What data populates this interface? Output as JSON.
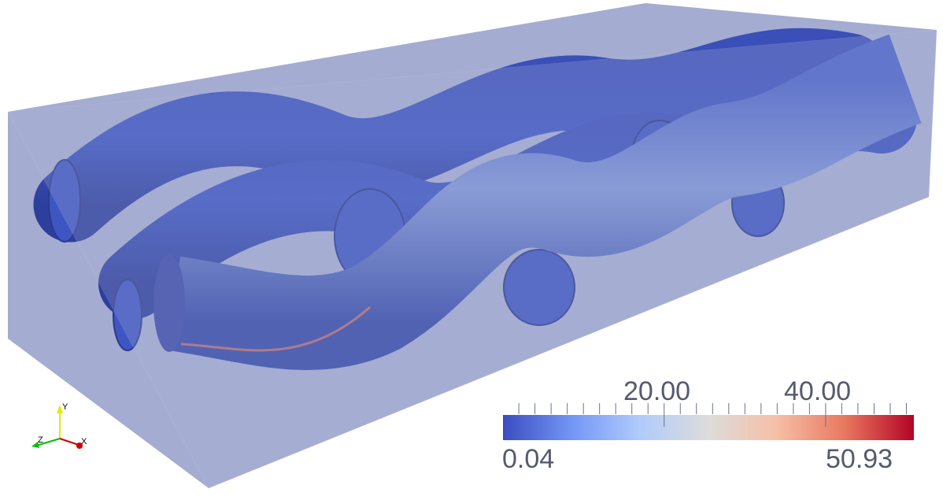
{
  "scalar_bar": {
    "range": [
      0.04,
      50.93
    ],
    "min_label": "0.04",
    "max_label": "50.93",
    "major_labels": [
      "20.00",
      "40.00"
    ],
    "major_values": [
      20,
      40
    ],
    "minor_step": 2,
    "colormap": [
      "#3b4cc0",
      "#7396f5",
      "#b0cbfc",
      "#dddcdb",
      "#f6bfa6",
      "#e8775e",
      "#b40426"
    ]
  },
  "orientation_axes": {
    "x_label": "X",
    "y_label": "Y",
    "z_label": "Z",
    "x_color": "#d00000",
    "y_color": "#e8e800",
    "z_color": "#00c000"
  },
  "colors": {
    "domain_box": "#8a95c4",
    "tube_low": "#3b4cc0",
    "tube_high": "#e8775e"
  }
}
